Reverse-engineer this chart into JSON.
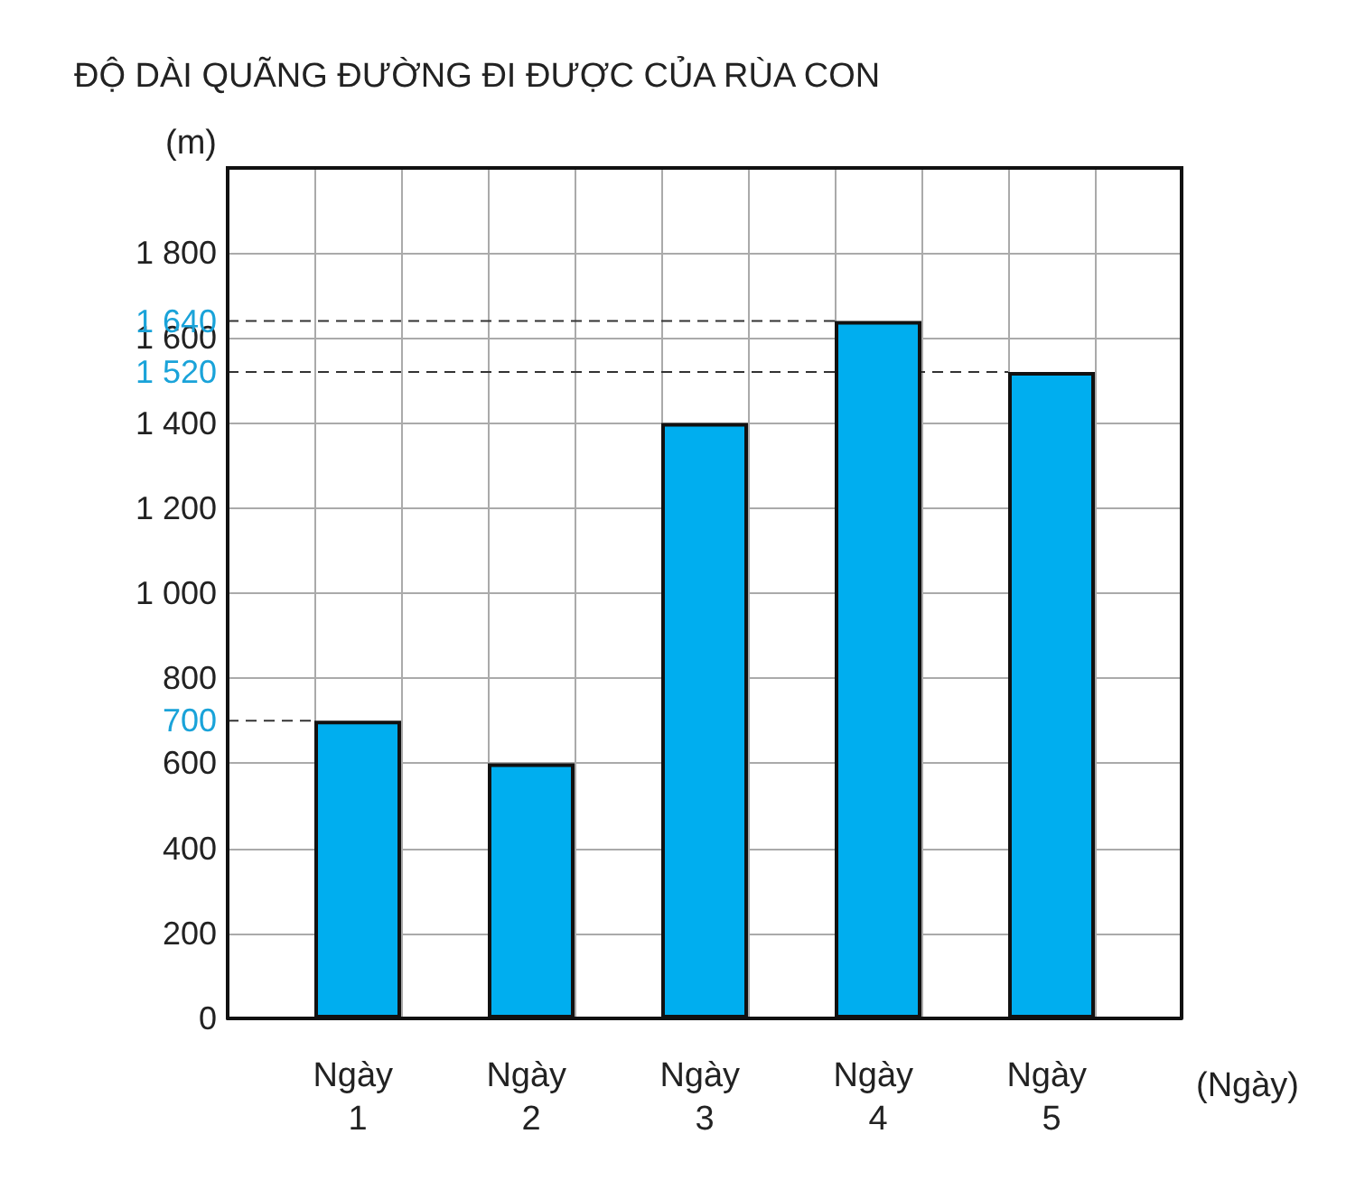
{
  "chart_data": {
    "type": "bar",
    "title": "ĐỘ DÀI QUÃNG ĐƯỜNG ĐI ĐƯỢC CỦA RÙA CON",
    "ylabel": "(m)",
    "xlabel": "(Ngày)",
    "categories": [
      "Ngày 1",
      "Ngày 2",
      "Ngày 3",
      "Ngày 4",
      "Ngày 5"
    ],
    "values": [
      700,
      600,
      1400,
      1640,
      1520
    ],
    "color": "#00aeef",
    "ylim": [
      0,
      2000
    ],
    "yticks": [
      0,
      200,
      400,
      600,
      800,
      {
        "value": 1000,
        "label": "1 000"
      },
      {
        "value": 1200,
        "label": "1 200"
      },
      {
        "value": 1400,
        "label": "1 400"
      },
      {
        "value": 1600,
        "label": "1 600"
      },
      {
        "value": 1800,
        "label": "1 800"
      }
    ],
    "ref_lines": [
      {
        "axis": "y",
        "value": 1640,
        "label": "1 640",
        "color": "#333333",
        "line_style": "dashed"
      },
      {
        "axis": "y",
        "value": 1520,
        "label": "1 520",
        "color": "#333333",
        "line_style": "dashed"
      },
      {
        "axis": "y",
        "value": 700,
        "label": "700",
        "color": "#333333",
        "line_style": "dashed"
      }
    ],
    "grid": true
  }
}
